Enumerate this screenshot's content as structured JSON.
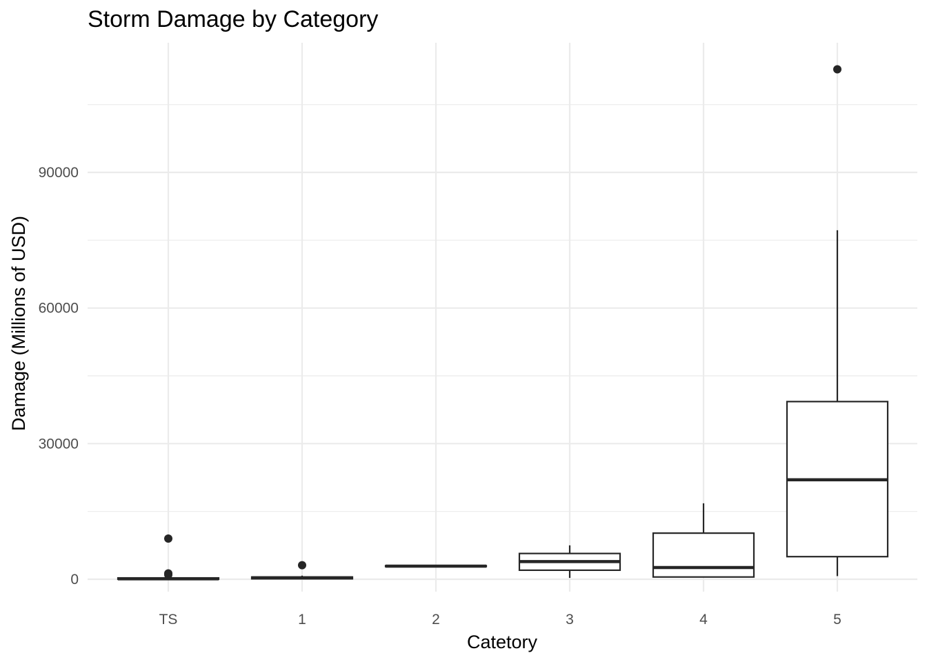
{
  "chart_data": {
    "type": "box",
    "title": "Storm Damage by Category",
    "xlabel": "Catetory",
    "ylabel": "Damage (Millions of USD)",
    "categories": [
      "TS",
      "1",
      "2",
      "3",
      "4",
      "5"
    ],
    "y_ticks": [
      0,
      30000,
      60000,
      90000
    ],
    "y_tick_labels": [
      "0",
      "30000",
      "60000",
      "90000"
    ],
    "ylim": [
      -4000,
      118000
    ],
    "grid": true,
    "color": "#262626",
    "grid_color": "#ebebeb",
    "boxes": [
      {
        "category": "TS",
        "whisker_low": 0,
        "q1": 0,
        "median": 100,
        "q3": 300,
        "whisker_high": 500,
        "outliers": [
          1000,
          1300,
          9000
        ]
      },
      {
        "category": "1",
        "whisker_low": 0,
        "q1": 100,
        "median": 300,
        "q3": 500,
        "whisker_high": 800,
        "outliers": [
          3100
        ]
      },
      {
        "category": "2",
        "whisker_low": 2700,
        "q1": 2800,
        "median": 2900,
        "q3": 3000,
        "whisker_high": 3100,
        "outliers": []
      },
      {
        "category": "3",
        "whisker_low": 300,
        "q1": 2000,
        "median": 3900,
        "q3": 5700,
        "whisker_high": 7500,
        "outliers": []
      },
      {
        "category": "4",
        "whisker_low": 500,
        "q1": 500,
        "median": 2600,
        "q3": 10200,
        "whisker_high": 16800,
        "outliers": []
      },
      {
        "category": "5",
        "whisker_low": 700,
        "q1": 5000,
        "median": 22000,
        "q3": 39300,
        "whisker_high": 77200,
        "outliers": [
          112800
        ]
      }
    ]
  }
}
